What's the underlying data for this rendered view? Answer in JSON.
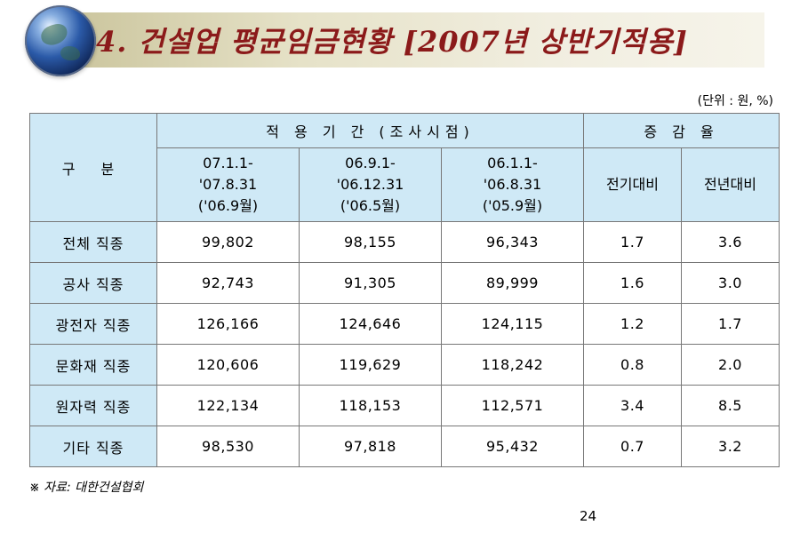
{
  "title_part1": "4. 건설업 평균임금현황 ",
  "title_part2": "[2007년 상반기적용]",
  "unit": "(단위 : 원, %)",
  "table": {
    "header": {
      "category": "구   분",
      "period_group": "적 용 기 간 (조사시점)",
      "change_group": "증 감 율",
      "periods": [
        [
          "07.1.1-",
          "'07.8.31",
          "('06.9월)"
        ],
        [
          "06.9.1-",
          "'06.12.31",
          "('06.5월)"
        ],
        [
          "06.1.1-",
          "'06.8.31",
          "('05.9월)"
        ]
      ],
      "change_cols": [
        "전기대비",
        "전년대비"
      ]
    },
    "rows": [
      {
        "label": "전체 직종",
        "p1": "99,802",
        "p2": "98,155",
        "p3": "96,343",
        "qoq": "1.7",
        "yoy": "3.6"
      },
      {
        "label": "공사 직종",
        "p1": "92,743",
        "p2": "91,305",
        "p3": "89,999",
        "qoq": "1.6",
        "yoy": "3.0"
      },
      {
        "label": "광전자 직종",
        "p1": "126,166",
        "p2": "124,646",
        "p3": "124,115",
        "qoq": "1.2",
        "yoy": "1.7"
      },
      {
        "label": "문화재 직종",
        "p1": "120,606",
        "p2": "119,629",
        "p3": "118,242",
        "qoq": "0.8",
        "yoy": "2.0"
      },
      {
        "label": "원자력 직종",
        "p1": "122,134",
        "p2": "118,153",
        "p3": "112,571",
        "qoq": "3.4",
        "yoy": "8.5"
      },
      {
        "label": "기타 직종",
        "p1": "98,530",
        "p2": "97,818",
        "p3": "95,432",
        "qoq": "0.7",
        "yoy": "3.2"
      }
    ]
  },
  "source": "※ 자료: 대한건설협회",
  "page_number": "24"
}
